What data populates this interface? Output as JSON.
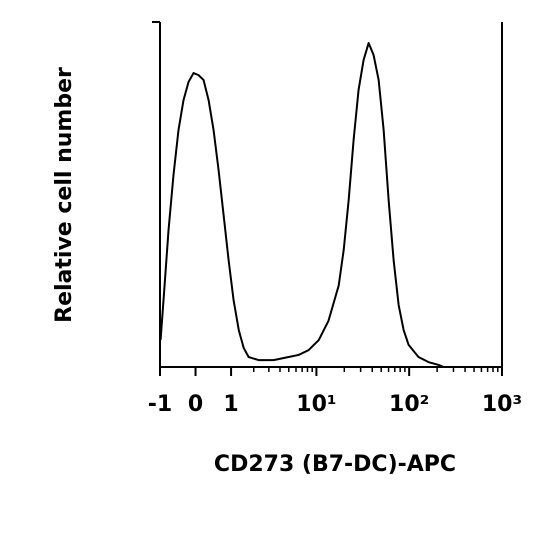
{
  "chart_data": {
    "type": "line",
    "xlabel": "CD273 (B7-DC)-APC",
    "ylabel": "Relative cell number",
    "xscale": "asinh",
    "xlim": [
      -1,
      1000
    ],
    "xticks": [
      -1,
      0,
      1,
      {
        "value": 10,
        "label": "10¹"
      },
      {
        "value": 100,
        "label": "10²"
      },
      {
        "value": 1000,
        "label": "10³"
      }
    ],
    "xminorticks": [
      2,
      3,
      4,
      5,
      6,
      7,
      8,
      9,
      20,
      30,
      40,
      50,
      60,
      70,
      80,
      90,
      200,
      300,
      400,
      500,
      600,
      700,
      800,
      900
    ],
    "ylim": [
      0,
      100
    ],
    "color": "#000000",
    "x": [
      -0.98,
      -0.88,
      -0.721,
      -0.574,
      -0.435,
      -0.302,
      -0.175,
      -0.05,
      0.074,
      0.2,
      0.329,
      0.462,
      0.603,
      0.753,
      0.915,
      1.09,
      1.29,
      1.5,
      1.73,
      2.28,
      3.39,
      4.98,
      6.41,
      8.23,
      10.6,
      13.5,
      17.4,
      19.7,
      22.3,
      25.2,
      28.5,
      32.3,
      36.6,
      41.4,
      46.9,
      53.1,
      60.1,
      68.0,
      77.0,
      87.2,
      98.7,
      126,
      162,
      208,
      235
    ],
    "values": [
      7.8,
      19.4,
      39.7,
      55.7,
      68.7,
      77.4,
      82.6,
      85.2,
      84.6,
      83.2,
      77.4,
      68.7,
      57.1,
      44.1,
      31.0,
      19.4,
      10.7,
      5.5,
      2.9,
      2.0,
      2.0,
      2.9,
      3.5,
      4.9,
      7.8,
      13.4,
      23.6,
      33.9,
      48.4,
      65.8,
      80.3,
      89.0,
      93.9,
      90.4,
      83.2,
      68.7,
      48.4,
      31.0,
      18.0,
      10.7,
      6.4,
      2.9,
      1.4,
      0.6,
      0
    ]
  }
}
